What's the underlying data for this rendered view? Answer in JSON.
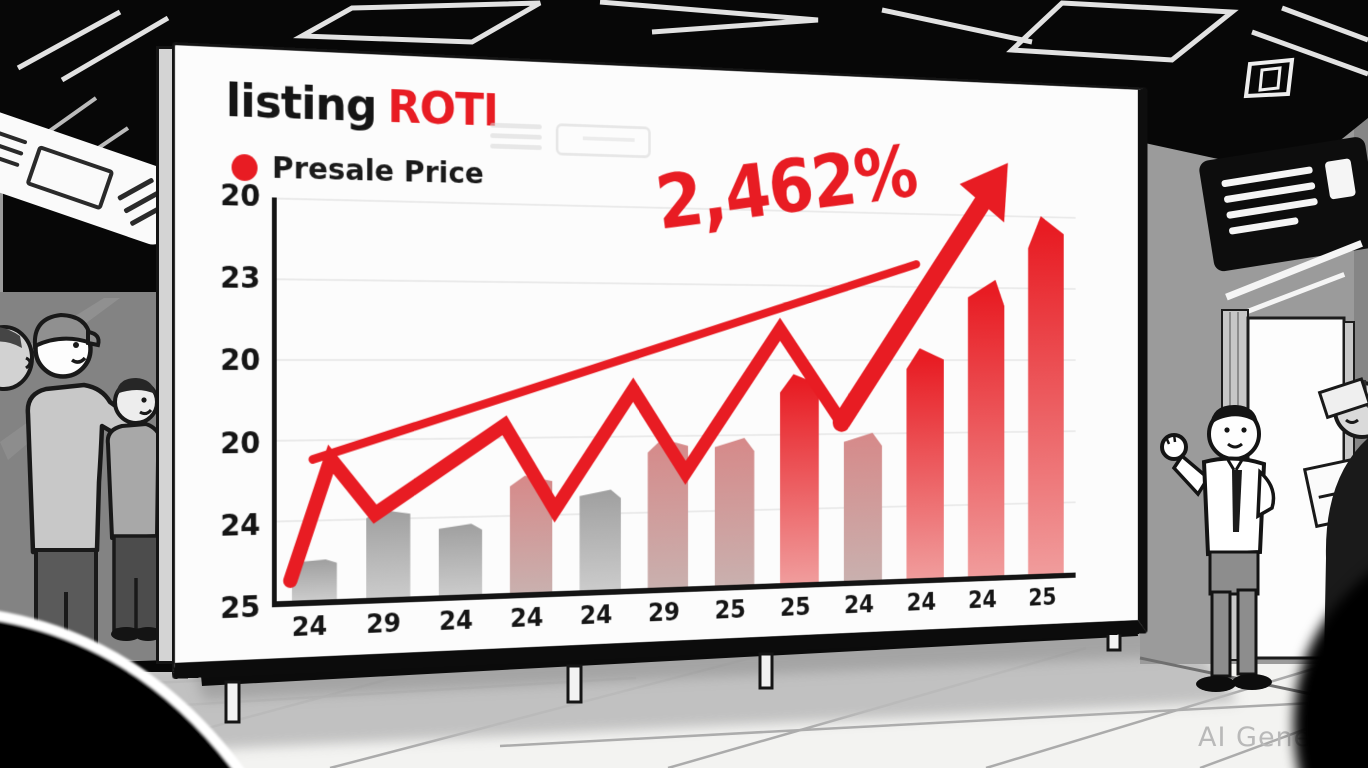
{
  "billboard": {
    "title": {
      "word_black": "listing",
      "word_red": "ROTI"
    },
    "legend": {
      "label": "Presale Price"
    },
    "annotation": {
      "text": "2,462%"
    }
  },
  "watermark": "AI Gener",
  "colors": {
    "accent_red": "#e81c23",
    "bar_gray_top": "#9f9f9f",
    "bar_pink_top": "#d68989",
    "board_white": "#fcfcfc"
  },
  "chart_data": {
    "type": "bar",
    "title": "listing ROTI",
    "legend": [
      {
        "label": "Presale Price",
        "color": "#e81c23",
        "position": "top-left",
        "marker": "red-dot"
      }
    ],
    "categories": [
      "24",
      "29",
      "24",
      "24",
      "24",
      "29",
      "25",
      "25",
      "24",
      "24",
      "24",
      "25"
    ],
    "yticks_top_to_bottom": [
      "20",
      "23",
      "20",
      "20",
      "24",
      "25"
    ],
    "grid": true,
    "annotation": {
      "text": "2,462%",
      "color": "#e81c23",
      "rotation_deg": -8
    },
    "series": [
      {
        "name": "Presale Price bars",
        "type": "bar",
        "values_pct_of_plot_height": [
          10,
          22,
          18,
          30,
          26,
          39,
          39,
          56,
          40,
          63,
          82,
          100
        ],
        "bar_styles": [
          "gray",
          "gray",
          "gray",
          "pink",
          "gray",
          "pink",
          "pink",
          "red",
          "pink",
          "red",
          "red",
          "red"
        ]
      },
      {
        "name": "Presale Price zigzag line",
        "type": "line",
        "color": "#e81c23",
        "ends_in_arrow": true,
        "points_pct": [
          [
            1.5,
            5
          ],
          [
            6,
            35
          ],
          [
            11,
            21
          ],
          [
            26,
            43
          ],
          [
            32,
            21
          ],
          [
            41.5,
            52
          ],
          [
            48,
            30
          ],
          [
            60,
            68
          ],
          [
            68,
            43
          ],
          [
            90,
            113
          ]
        ]
      },
      {
        "name": "trend line",
        "type": "line",
        "color": "#e81c23",
        "points_pct": [
          [
            4,
            35
          ],
          [
            78,
            86
          ]
        ]
      }
    ]
  }
}
